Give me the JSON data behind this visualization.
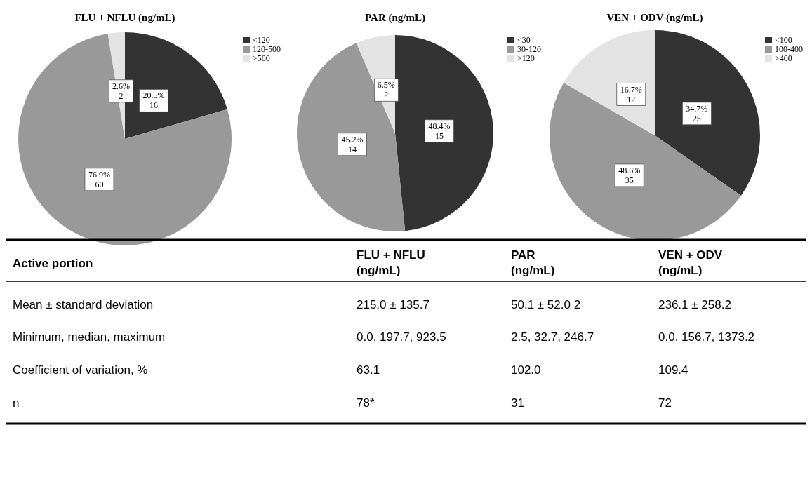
{
  "chart_data": [
    {
      "type": "pie",
      "title": "FLU + NFLU (ng/mL)",
      "categories": [
        "<120",
        "120-500",
        ">500"
      ],
      "values": [
        16,
        60,
        2
      ],
      "colors": [
        "#333333",
        "#999999",
        "#e3e3e3"
      ],
      "value_labels": [
        "20.5%\n16",
        "76.9%\n60",
        "2.6%\n2"
      ],
      "legend": "top right"
    },
    {
      "type": "pie",
      "title": "PAR (ng/mL)",
      "categories": [
        "<30",
        "30-120",
        ">120"
      ],
      "values": [
        15,
        14,
        2
      ],
      "colors": [
        "#333333",
        "#999999",
        "#e3e3e3"
      ],
      "value_labels": [
        "48.4%\n15",
        "45.2%\n14",
        "6.5%\n2"
      ],
      "legend": "top right"
    },
    {
      "type": "pie",
      "title": "VEN + ODV (ng/mL)",
      "categories": [
        "<100",
        "100-400",
        ">400"
      ],
      "values": [
        25,
        35,
        12
      ],
      "colors": [
        "#333333",
        "#999999",
        "#e3e3e3"
      ],
      "value_labels": [
        "34.7%\n25",
        "48.6%\n35",
        "16.7%\n12"
      ],
      "legend": "top right"
    },
    {
      "type": "other",
      "title": "Active portion",
      "categories": [
        "FLU + NFLU (ng/mL)",
        "PAR (ng/mL)",
        "VEN + ODV (ng/mL)"
      ],
      "y_categories": [
        "Mean ± standard deviation",
        "Minimum, median, maximum",
        "Coefficient of variation, %",
        "n"
      ],
      "cell_labels": [
        [
          "215.0 ± 135.7",
          "50.1 ± 52.0 2",
          "236.1 ± 258.2"
        ],
        [
          "0.0, 197.7, 923.5",
          "2.5, 32.7, 246.7",
          "0.0, 156.7, 1373.2"
        ],
        [
          "63.1",
          "102.0",
          "109.4"
        ],
        [
          "78*",
          "31",
          "72"
        ]
      ]
    }
  ]
}
